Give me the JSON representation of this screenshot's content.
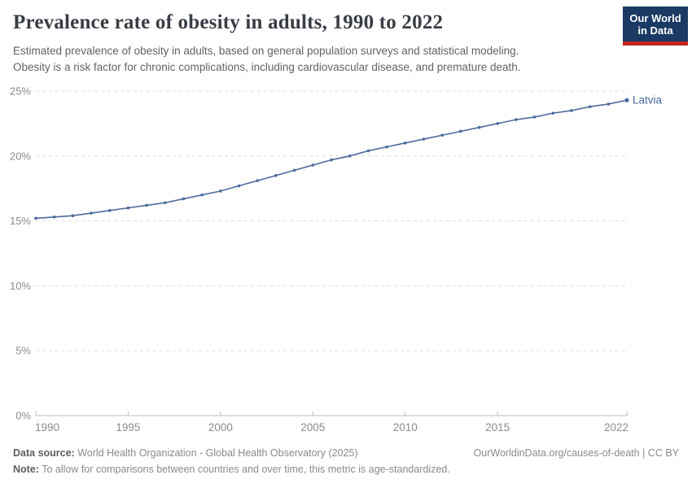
{
  "header": {
    "title": "Prevalence rate of obesity in adults, 1990 to 2022",
    "subtitle": [
      "Estimated prevalence of obesity in adults, based on general population surveys and statistical modeling.",
      "Obesity is a risk factor for chronic complications, including cardiovascular disease, and premature death."
    ],
    "logo": {
      "line1": "Our World",
      "line2": "in Data"
    }
  },
  "chart_data": {
    "type": "line",
    "title": "Prevalence rate of obesity in adults, 1990 to 2022",
    "xlim": [
      1990,
      2022
    ],
    "ylim": [
      0,
      25
    ],
    "x_ticks": [
      1990,
      1995,
      2000,
      2005,
      2010,
      2015,
      2022
    ],
    "y_ticks": [
      0,
      5,
      10,
      15,
      20,
      25
    ],
    "y_tick_suffix": "%",
    "grid": "horizontal-dashed",
    "legend_position": "end-of-line-label",
    "colors": {
      "line": "#4c6a9c",
      "grid": "#dcdcdc",
      "axis": "#bdbdbd",
      "tick_text": "#8c8c8c"
    },
    "series": [
      {
        "name": "Latvia",
        "color": "#4c6a9c",
        "x": [
          1990,
          1991,
          1992,
          1993,
          1994,
          1995,
          1996,
          1997,
          1998,
          1999,
          2000,
          2001,
          2002,
          2003,
          2004,
          2005,
          2006,
          2007,
          2008,
          2009,
          2010,
          2011,
          2012,
          2013,
          2014,
          2015,
          2016,
          2017,
          2018,
          2019,
          2020,
          2021,
          2022
        ],
        "values": [
          15.2,
          15.3,
          15.4,
          15.6,
          15.8,
          16.0,
          16.2,
          16.4,
          16.7,
          17.0,
          17.3,
          17.7,
          18.1,
          18.5,
          18.9,
          19.3,
          19.7,
          20.0,
          20.4,
          20.7,
          21.0,
          21.3,
          21.6,
          21.9,
          22.2,
          22.5,
          22.8,
          23.0,
          23.3,
          23.5,
          23.8,
          24.0,
          24.3
        ]
      }
    ]
  },
  "footer": {
    "source_label": "Data source:",
    "source_value": " World Health Organization - Global Health Observatory (2025)",
    "attribution": "OurWorldinData.org/causes-of-death | CC BY",
    "note_label": "Note:",
    "note_value": " To allow for comparisons between countries and over time, this metric is age-standardized."
  }
}
